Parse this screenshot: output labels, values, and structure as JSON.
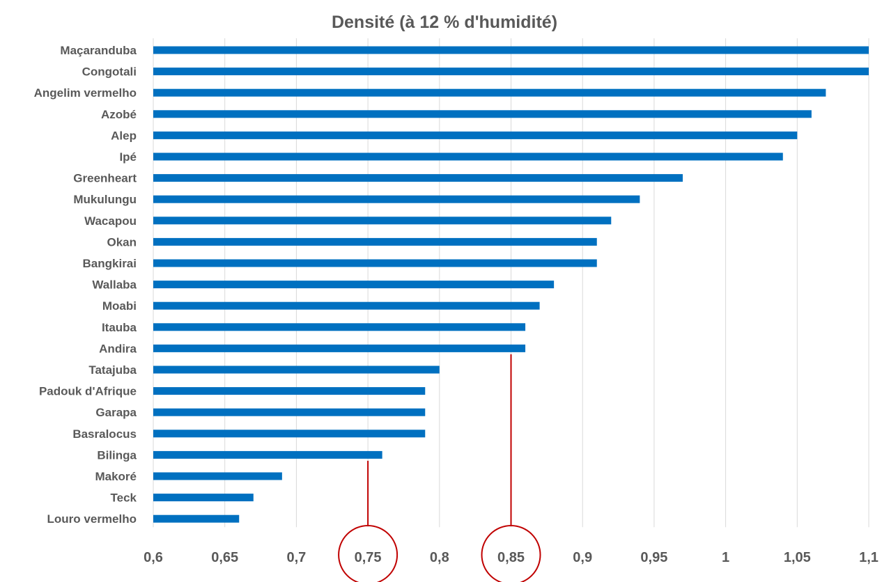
{
  "chart_data": {
    "type": "bar",
    "orientation": "horizontal",
    "title": "Densité (à 12 % d'humidité)",
    "xlabel": "",
    "ylabel": "",
    "categories": [
      "Maçaranduba",
      "Congotali",
      "Angelim vermelho",
      "Azobé",
      "Alep",
      "Ipé",
      "Greenheart",
      "Mukulungu",
      "Wacapou",
      "Okan",
      "Bangkirai",
      "Wallaba",
      "Moabi",
      "Itauba",
      "Andira",
      "Tatajuba",
      "Padouk d'Afrique",
      "Garapa",
      "Basralocus",
      "Bilinga",
      "Makoré",
      "Teck",
      "Louro vermelho"
    ],
    "values": [
      1.1,
      1.1,
      1.07,
      1.06,
      1.05,
      1.04,
      0.97,
      0.94,
      0.92,
      0.91,
      0.91,
      0.88,
      0.87,
      0.86,
      0.86,
      0.8,
      0.79,
      0.79,
      0.79,
      0.76,
      0.69,
      0.67,
      0.66
    ],
    "xlim": [
      0.6,
      1.1
    ],
    "x_ticks": [
      "0,6",
      "0,65",
      "0,7",
      "0,75",
      "0,8",
      "0,85",
      "0,9",
      "0,95",
      "1",
      "1,05",
      "1,1"
    ],
    "grid": "vertical",
    "legend": "none",
    "bar_color": "#0070C0",
    "annotations": [
      {
        "type": "marker-line-with-circle",
        "value": 0.75,
        "attached_category": "Bilinga",
        "color": "#C00000"
      },
      {
        "type": "marker-line-with-circle",
        "value": 0.85,
        "attached_category": "Andira",
        "color": "#C00000"
      }
    ]
  }
}
